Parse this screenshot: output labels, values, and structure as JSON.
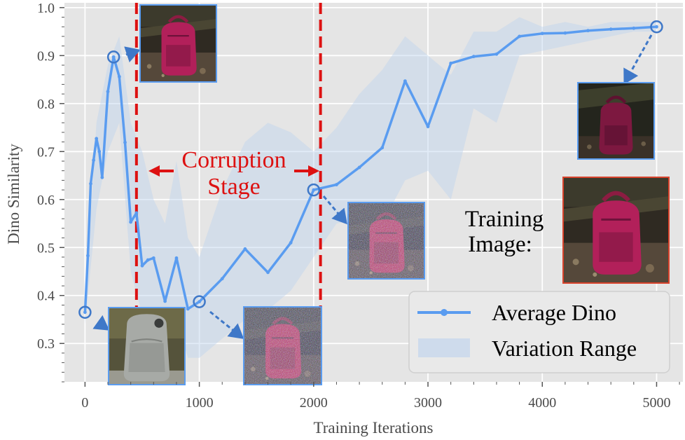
{
  "chart_data": {
    "type": "line",
    "title": "",
    "xlabel": "Training Iterations",
    "ylabel": "Dino Similarity",
    "xlim": [
      -180,
      5230
    ],
    "ylim": [
      0.22,
      1.01
    ],
    "xticks": [
      0,
      1000,
      2000,
      3000,
      4000,
      5000
    ],
    "xtick_labels": [
      "0",
      "1000",
      "2000",
      "3000",
      "4000",
      "5000"
    ],
    "yticks": [
      0.3,
      0.4,
      0.5,
      0.6,
      0.7,
      0.8,
      0.9,
      1.0
    ],
    "ytick_labels": [
      "0.3",
      "0.4",
      "0.5",
      "0.6",
      "0.7",
      "0.8",
      "0.9",
      "1.0"
    ],
    "grid": true,
    "legend_position": "bottom-right",
    "series": [
      {
        "name": "Average Dino",
        "color": "#5a9cf0",
        "x": [
          0,
          25,
          50,
          75,
          100,
          125,
          150,
          200,
          250,
          300,
          350,
          400,
          450,
          500,
          550,
          600,
          700,
          800,
          900,
          1000,
          1200,
          1400,
          1600,
          1800,
          2000,
          2200,
          2400,
          2600,
          2800,
          3000,
          3200,
          3400,
          3600,
          3800,
          4000,
          4200,
          4400,
          4600,
          4800,
          5000
        ],
        "y": [
          0.365,
          0.483,
          0.633,
          0.682,
          0.727,
          0.7,
          0.646,
          0.825,
          0.897,
          0.856,
          0.719,
          0.553,
          0.572,
          0.462,
          0.474,
          0.478,
          0.388,
          0.478,
          0.372,
          0.387,
          0.435,
          0.497,
          0.448,
          0.51,
          0.62,
          0.631,
          0.667,
          0.708,
          0.847,
          0.752,
          0.884,
          0.898,
          0.903,
          0.94,
          0.946,
          0.947,
          0.952,
          0.955,
          0.957,
          0.96
        ]
      },
      {
        "name": "Variation Range",
        "type": "area",
        "color": "#bcd2ee",
        "x": [
          0,
          100,
          200,
          300,
          400,
          500,
          600,
          700,
          800,
          900,
          1000,
          1200,
          1400,
          1600,
          1800,
          2000,
          2200,
          2400,
          2600,
          2800,
          3000,
          3200,
          3400,
          3600,
          3800,
          4000,
          4200,
          4400,
          4600,
          4800,
          5000
        ],
        "lower": [
          0.34,
          0.58,
          0.7,
          0.76,
          0.45,
          0.36,
          0.3,
          0.28,
          0.35,
          0.27,
          0.27,
          0.31,
          0.35,
          0.37,
          0.41,
          0.48,
          0.55,
          0.56,
          0.55,
          0.64,
          0.66,
          0.6,
          0.79,
          0.76,
          0.9,
          0.91,
          0.92,
          0.93,
          0.94,
          0.95,
          0.95
        ],
        "upper": [
          0.38,
          0.76,
          0.88,
          0.94,
          0.76,
          0.7,
          0.6,
          0.55,
          0.68,
          0.52,
          0.48,
          0.62,
          0.72,
          0.76,
          0.74,
          0.7,
          0.75,
          0.82,
          0.87,
          0.94,
          0.9,
          0.86,
          0.95,
          0.95,
          0.98,
          0.96,
          0.97,
          0.96,
          0.97,
          0.97,
          0.97
        ]
      }
    ],
    "vlines": [
      {
        "x": 450,
        "color": "#dd1111",
        "style": "dashed"
      },
      {
        "x": 2060,
        "color": "#dd1111",
        "style": "dashed"
      }
    ],
    "highlighted_points": [
      {
        "x": 0,
        "y": 0.365
      },
      {
        "x": 250,
        "y": 0.897
      },
      {
        "x": 1000,
        "y": 0.387
      },
      {
        "x": 2000,
        "y": 0.62
      },
      {
        "x": 5000,
        "y": 0.96
      }
    ],
    "annotations": [
      {
        "text": "Corruption",
        "color": "#dd1111"
      },
      {
        "text": "Stage",
        "color": "#dd1111"
      },
      {
        "text": "Training",
        "color": "#000000"
      },
      {
        "text": "Image:",
        "color": "#000000"
      }
    ]
  }
}
